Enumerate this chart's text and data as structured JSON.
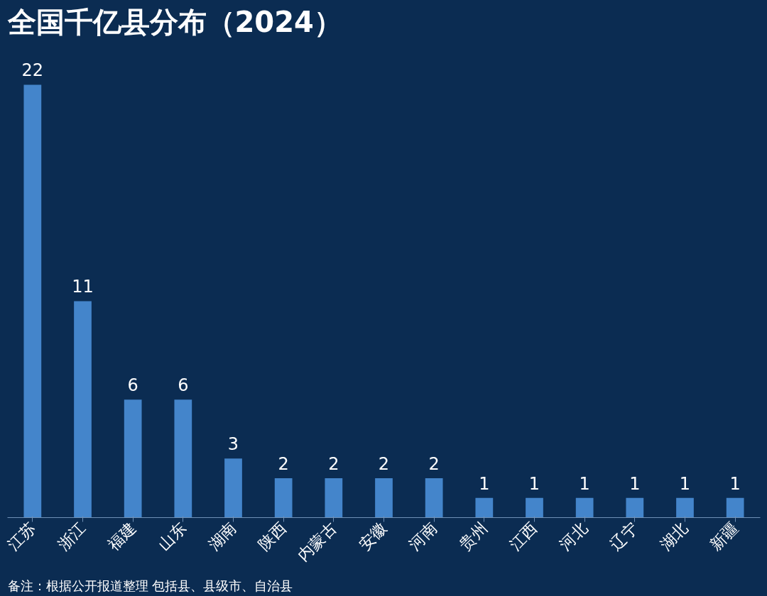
{
  "chart_data": {
    "type": "bar",
    "title": "全国千亿县分布（2024）",
    "categories": [
      "江苏",
      "浙江",
      "福建",
      "山东",
      "湖南",
      "陕西",
      "内蒙古",
      "安徽",
      "河南",
      "贵州",
      "江西",
      "河北",
      "辽宁",
      "湖北",
      "新疆"
    ],
    "values": [
      22,
      11,
      6,
      6,
      3,
      2,
      2,
      2,
      2,
      1,
      1,
      1,
      1,
      1,
      1
    ],
    "color": "#4a8fd8",
    "data_labels": true,
    "grid": false,
    "annotations": [
      "备注：根据公开报道整理 包括县、县级市、自治县"
    ]
  }
}
